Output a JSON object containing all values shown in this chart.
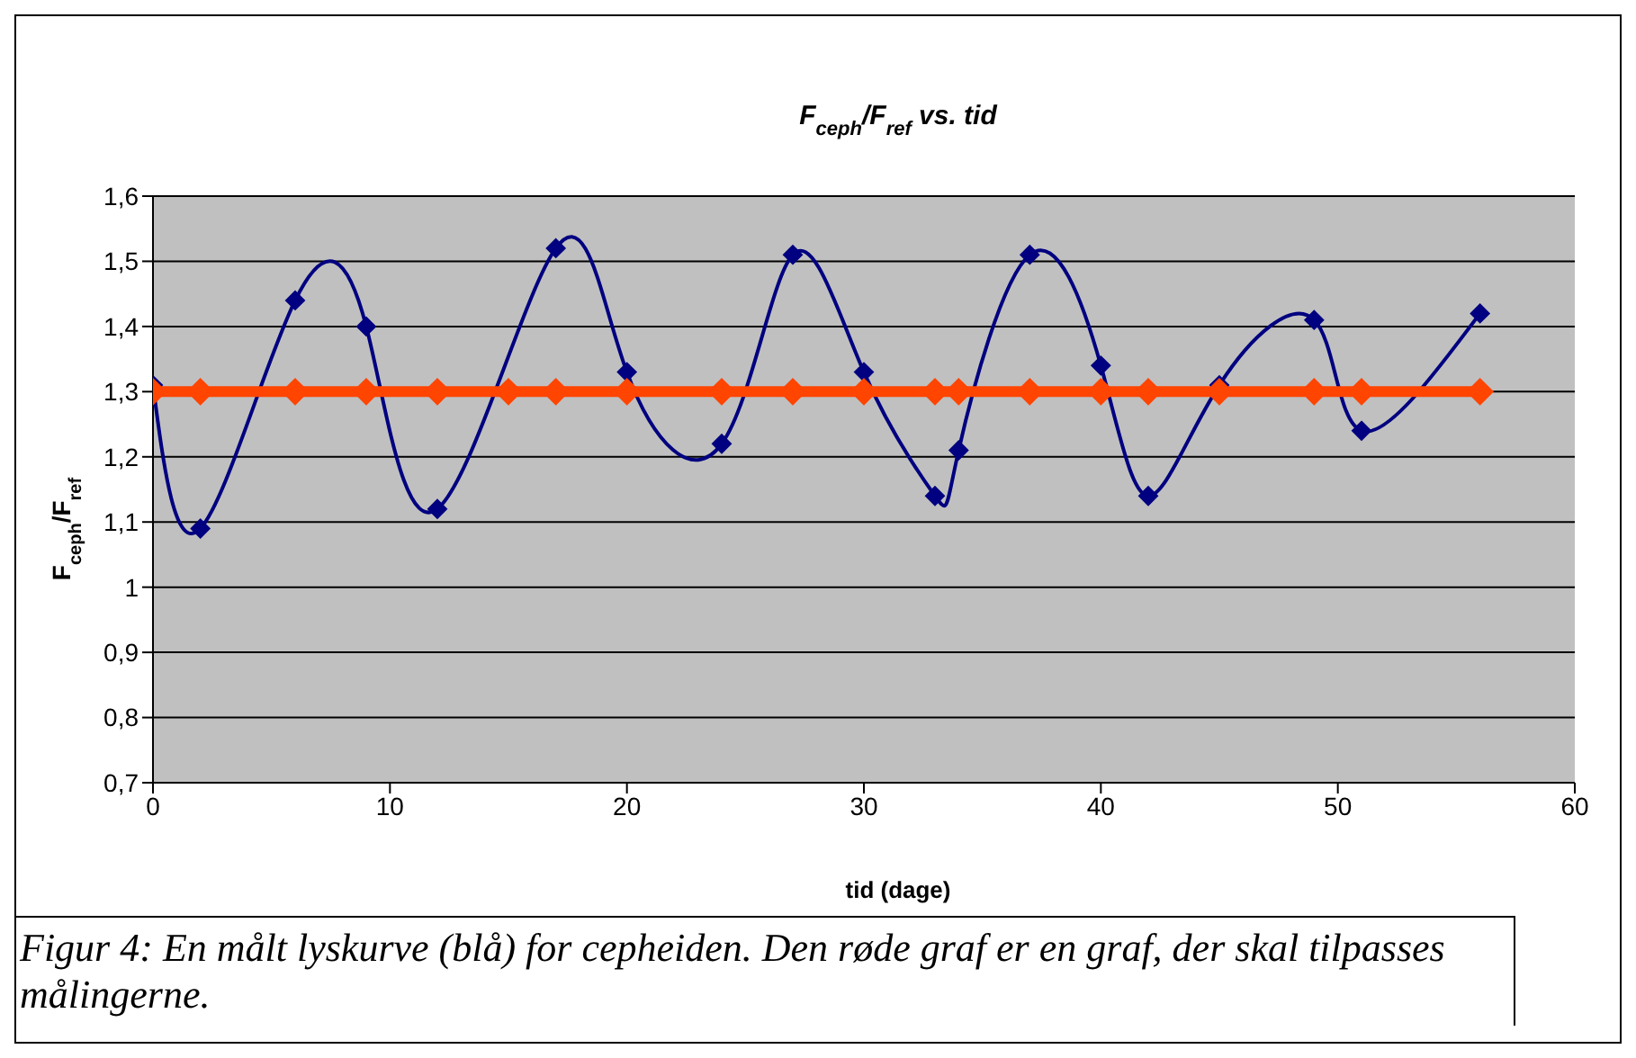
{
  "chart_data": {
    "type": "line",
    "title": "F$_{ceph}$/F$_{ref}$ vs. tid",
    "xlabel": "tid (dage)",
    "ylabel": "F$_{ceph}$/F$_{ref}$",
    "x": [
      0,
      2,
      6,
      9,
      12,
      15,
      17,
      20,
      24,
      27,
      30,
      33,
      34,
      37,
      40,
      42,
      45,
      49,
      51,
      56
    ],
    "series": [
      {
        "color": "#000080",
        "x": [
          0,
          2,
          6,
          9,
          12,
          17,
          20,
          24,
          27,
          30,
          33,
          34,
          37,
          40,
          42,
          45,
          49,
          51,
          56
        ],
        "values": [
          1.31,
          1.09,
          1.44,
          1.4,
          1.12,
          1.52,
          1.33,
          1.22,
          1.51,
          1.33,
          1.14,
          1.21,
          1.51,
          1.34,
          1.14,
          1.31,
          1.41,
          1.24,
          1.42
        ]
      },
      {
        "color": "#ff4500",
        "values": [
          1.3,
          1.3,
          1.3,
          1.3,
          1.3,
          1.3,
          1.3,
          1.3,
          1.3,
          1.3,
          1.3,
          1.3,
          1.3,
          1.3,
          1.3,
          1.3,
          1.3,
          1.3,
          1.3,
          1.3
        ]
      }
    ],
    "xlim": [
      0,
      60
    ],
    "xticks": [
      0,
      10,
      20,
      30,
      40,
      50,
      60
    ],
    "ylim": [
      0.7,
      1.6
    ],
    "yticks": [
      {
        "value": 0.7,
        "label": "0,7"
      },
      {
        "value": 0.8,
        "label": "0,8"
      },
      {
        "value": 0.9,
        "label": "0,9"
      },
      {
        "value": 1,
        "label": "1"
      },
      {
        "value": 1.1,
        "label": "1,1"
      },
      {
        "value": 1.2,
        "label": "1,2"
      },
      {
        "value": 1.3,
        "label": "1,3"
      },
      {
        "value": 1.4,
        "label": "1,4"
      },
      {
        "value": 1.5,
        "label": "1,5"
      },
      {
        "value": 1.6,
        "label": "1,6"
      }
    ],
    "grid": "y",
    "marker": "diamond",
    "line_style": "solid",
    "annotations": [
      "Figur 4: En målt lyskurve (blå) for cepheiden. Den røde graf er en graf, der skal tilpasses målingerne."
    ]
  }
}
